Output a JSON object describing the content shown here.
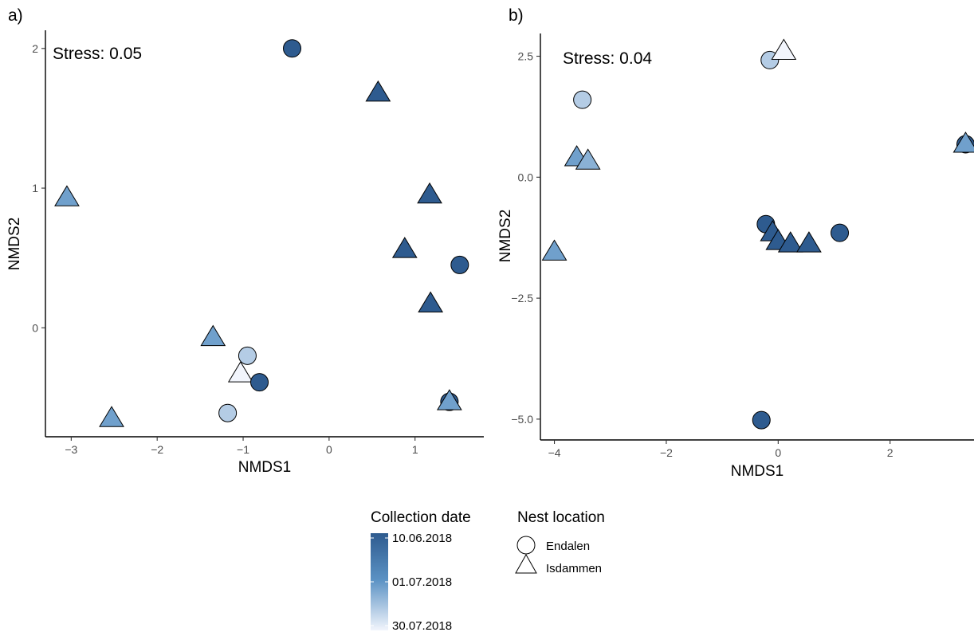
{
  "chart_data": [
    {
      "type": "scatter",
      "panel_tag": "a)",
      "annotation": "Stress: 0.05",
      "xlabel": "NMDS1",
      "ylabel": "NMDS2",
      "xlim": [
        -3.3,
        1.8
      ],
      "ylim": [
        -0.78,
        2.13
      ],
      "xticks": [
        -3,
        -2,
        -1,
        0,
        1
      ],
      "yticks": [
        0,
        1,
        2
      ],
      "grid": false,
      "points": [
        {
          "x": -0.43,
          "y": 2.0,
          "shape": "circle",
          "date": "2018-06-10"
        },
        {
          "x": 0.57,
          "y": 1.68,
          "shape": "triangle",
          "date": "2018-06-10"
        },
        {
          "x": -3.05,
          "y": 0.93,
          "shape": "triangle",
          "date": "2018-07-05"
        },
        {
          "x": 1.17,
          "y": 0.95,
          "shape": "triangle",
          "date": "2018-06-10"
        },
        {
          "x": 0.88,
          "y": 0.56,
          "shape": "triangle",
          "date": "2018-06-10"
        },
        {
          "x": 1.52,
          "y": 0.45,
          "shape": "circle",
          "date": "2018-06-10"
        },
        {
          "x": 1.18,
          "y": 0.17,
          "shape": "triangle",
          "date": "2018-06-10"
        },
        {
          "x": -1.35,
          "y": -0.07,
          "shape": "triangle",
          "date": "2018-07-05"
        },
        {
          "x": -0.95,
          "y": -0.2,
          "shape": "circle",
          "date": "2018-07-18"
        },
        {
          "x": -1.03,
          "y": -0.33,
          "shape": "triangle",
          "date": "2018-07-30"
        },
        {
          "x": -0.81,
          "y": -0.39,
          "shape": "circle",
          "date": "2018-06-10"
        },
        {
          "x": 1.4,
          "y": -0.53,
          "shape": "circle",
          "date": "2018-06-10"
        },
        {
          "x": 1.4,
          "y": -0.53,
          "shape": "triangle",
          "date": "2018-07-05"
        },
        {
          "x": -2.53,
          "y": -0.65,
          "shape": "triangle",
          "date": "2018-07-05"
        },
        {
          "x": -1.18,
          "y": -0.61,
          "shape": "circle",
          "date": "2018-07-18"
        }
      ]
    },
    {
      "type": "scatter",
      "panel_tag": "b)",
      "annotation": "Stress: 0.04",
      "xlabel": "NMDS1",
      "ylabel": "NMDS2",
      "xlim": [
        -4.25,
        3.5
      ],
      "ylim": [
        -5.43,
        2.97
      ],
      "xticks": [
        -4,
        -2,
        0,
        2
      ],
      "yticks": [
        2.5,
        0.0,
        -2.5,
        -5.0
      ],
      "ytick_labels": [
        "2.5",
        "0.0",
        "−2.5",
        "−5.0"
      ],
      "grid": false,
      "points": [
        {
          "x": -0.15,
          "y": 2.42,
          "shape": "circle",
          "date": "2018-07-18"
        },
        {
          "x": 0.1,
          "y": 2.6,
          "shape": "triangle",
          "date": "2018-07-30"
        },
        {
          "x": -3.5,
          "y": 1.6,
          "shape": "circle",
          "date": "2018-07-18"
        },
        {
          "x": -3.6,
          "y": 0.4,
          "shape": "triangle",
          "date": "2018-07-05"
        },
        {
          "x": -3.4,
          "y": 0.33,
          "shape": "triangle",
          "date": "2018-07-10"
        },
        {
          "x": 3.35,
          "y": 0.68,
          "shape": "circle",
          "date": "2018-06-10"
        },
        {
          "x": 3.35,
          "y": 0.68,
          "shape": "triangle",
          "date": "2018-07-05"
        },
        {
          "x": -4.0,
          "y": -1.55,
          "shape": "triangle",
          "date": "2018-07-05"
        },
        {
          "x": -0.22,
          "y": -0.97,
          "shape": "circle",
          "date": "2018-06-10"
        },
        {
          "x": -0.1,
          "y": -1.15,
          "shape": "triangle",
          "date": "2018-06-10"
        },
        {
          "x": 0.0,
          "y": -1.33,
          "shape": "triangle",
          "date": "2018-06-10"
        },
        {
          "x": 0.22,
          "y": -1.38,
          "shape": "triangle",
          "date": "2018-06-10"
        },
        {
          "x": 0.55,
          "y": -1.38,
          "shape": "triangle",
          "date": "2018-06-10"
        },
        {
          "x": 1.1,
          "y": -1.15,
          "shape": "circle",
          "date": "2018-06-10"
        },
        {
          "x": -0.3,
          "y": -5.02,
          "shape": "circle",
          "date": "2018-06-10"
        }
      ]
    }
  ],
  "legend": {
    "color": {
      "title": "Collection date",
      "labels": [
        "10.06.2018",
        "01.07.2018",
        "30.07.2018"
      ],
      "dark": "#2e5b8f",
      "light": "#f2f5fc"
    },
    "shape": {
      "title": "Nest location",
      "items": [
        {
          "label": "Endalen",
          "shape": "circle"
        },
        {
          "label": "Isdammen",
          "shape": "triangle"
        }
      ]
    }
  }
}
